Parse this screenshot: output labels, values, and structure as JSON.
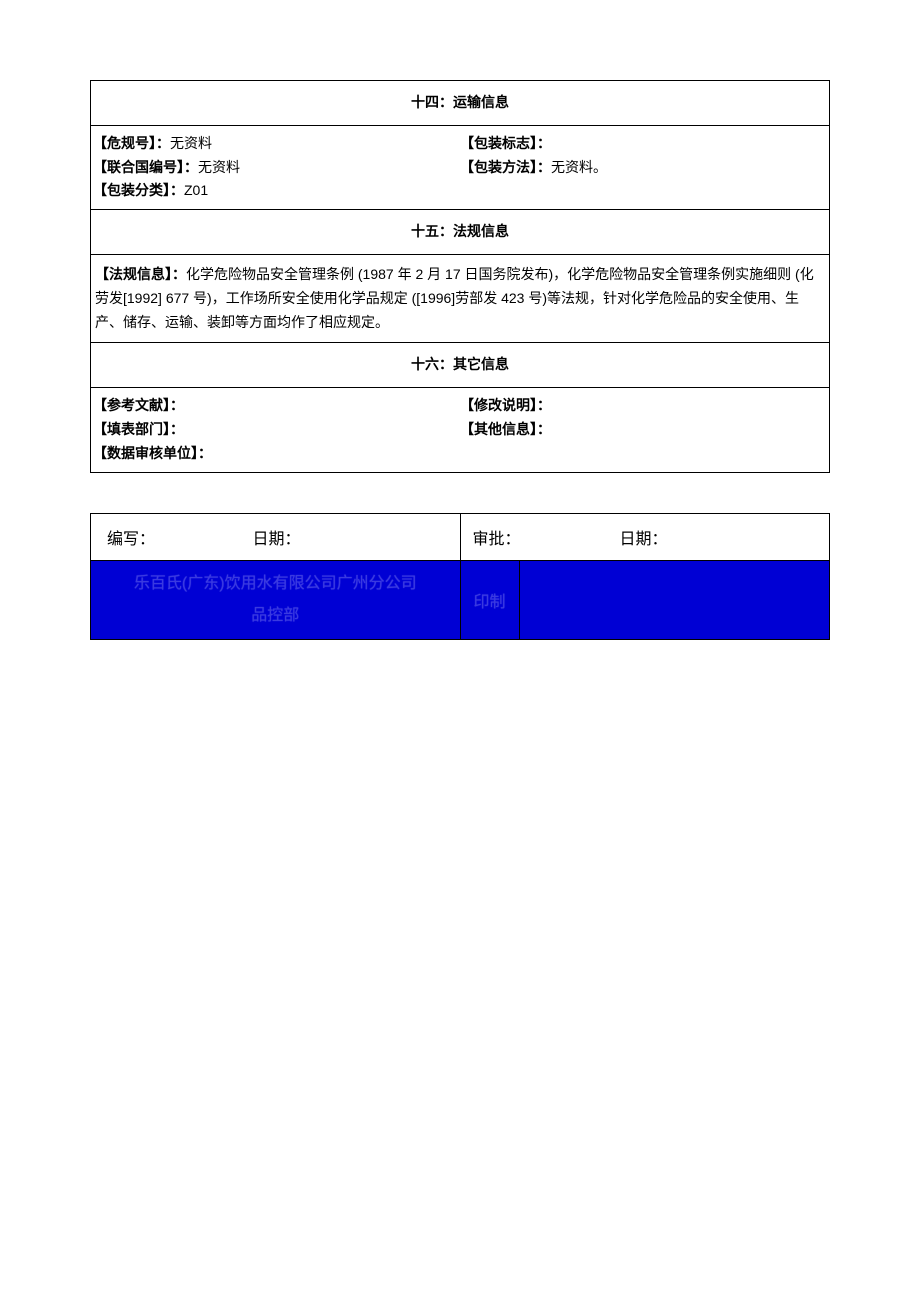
{
  "section14": {
    "title": "十四：运输信息",
    "hazard_no_label": "【危规号】：",
    "hazard_no_value": "无资料",
    "un_no_label": "【联合国编号】：",
    "un_no_value": "无资料",
    "pack_class_label": "【包装分类】：",
    "pack_class_value": "Z01",
    "pack_mark_label": "【包装标志】：",
    "pack_mark_value": "",
    "pack_method_label": "【包装方法】：",
    "pack_method_value": "无资料。"
  },
  "section15": {
    "title": "十五：法规信息",
    "reg_label": "【法规信息】：",
    "reg_text": "化学危险物品安全管理条例  (1987 年 2 月 17 日国务院发布)，化学危险物品安全管理条例实施细则  (化劳发[1992]  677 号)，工作场所安全使用化学品规定  ([1996]劳部发 423 号)等法规，针对化学危险品的安全使用、生产、储存、运输、装卸等方面均作了相应规定。"
  },
  "section16": {
    "title": "十六：其它信息",
    "ref_label": "【参考文献】：",
    "ref_value": "",
    "fill_dept_label": "【填表部门】：",
    "fill_dept_value": "",
    "audit_unit_label": "【数据审核单位】：",
    "audit_unit_value": "",
    "mod_note_label": "【修改说明】：",
    "mod_note_value": "",
    "other_info_label": "【其他信息】：",
    "other_info_value": ""
  },
  "signature": {
    "prepared_label": "编写：",
    "date_label": "日期：",
    "approved_label": "审批：",
    "company_line1": "乐百氏(广东)饮用水有限公司广州分公司",
    "company_line2": "品控部",
    "stamp": "印制"
  },
  "colors": {
    "blue_bg": "#0000d4",
    "blue_text": "#3a3ae0"
  }
}
